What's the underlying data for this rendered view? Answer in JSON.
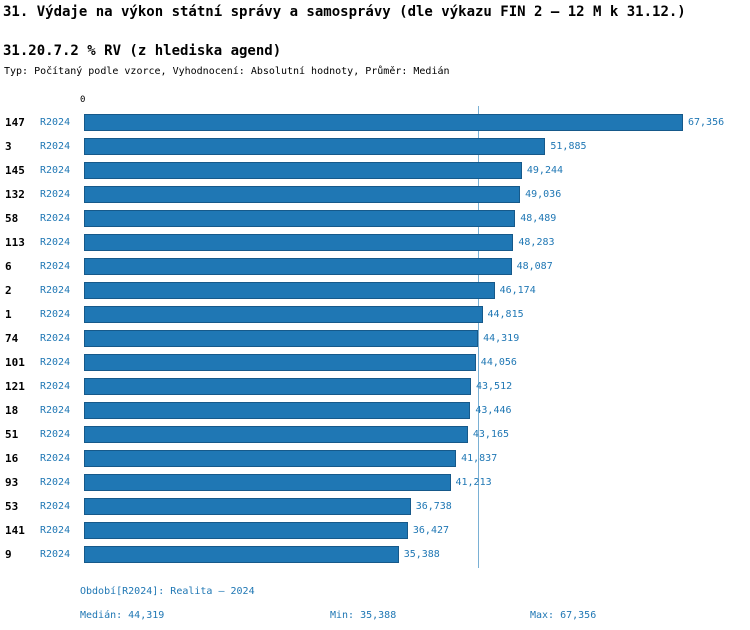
{
  "title": "31. Výdaje na výkon státní správy a samosprávy (dle výkazu FIN 2 – 12 M k 31.12.)",
  "subtitle": "31.20.7.2 % RV (z hlediska agend)",
  "meta_line": "Typ: Počítaný podle vzorce, Vyhodnocení: Absolutní hodnoty, Průměr: Medián",
  "chart_data": {
    "type": "bar",
    "orientation": "horizontal",
    "title": "31.20.7.2 % RV (z hlediska agend)",
    "axis_zero_label": "0",
    "series_name": "R2024",
    "categories": [
      "147",
      "3",
      "145",
      "132",
      "58",
      "113",
      "6",
      "2",
      "1",
      "74",
      "101",
      "121",
      "18",
      "51",
      "16",
      "93",
      "53",
      "141",
      "9"
    ],
    "values": [
      67356,
      51885,
      49244,
      49036,
      48489,
      48283,
      48087,
      46174,
      44815,
      44319,
      44056,
      43512,
      43446,
      43165,
      41837,
      41213,
      36738,
      36427,
      35388
    ],
    "value_labels": [
      "67,356",
      "51,885",
      "49,244",
      "49,036",
      "48,489",
      "48,283",
      "48,087",
      "46,174",
      "44,815",
      "44,319",
      "44,056",
      "43,512",
      "43,446",
      "43,165",
      "41,837",
      "41,213",
      "36,738",
      "36,427",
      "35,388"
    ],
    "xlim": [
      0,
      67356
    ],
    "median": 44319,
    "min": 35388,
    "max": 67356,
    "bar_color": "#1f77b4",
    "median_line_color": "#7ab0d4",
    "grid": false,
    "legend_position": "none"
  },
  "footer": {
    "period": "Období[R2024]: Realita – 2024",
    "median": "Medián: 44,319",
    "min": "Min: 35,388",
    "max": "Max: 67,356"
  }
}
